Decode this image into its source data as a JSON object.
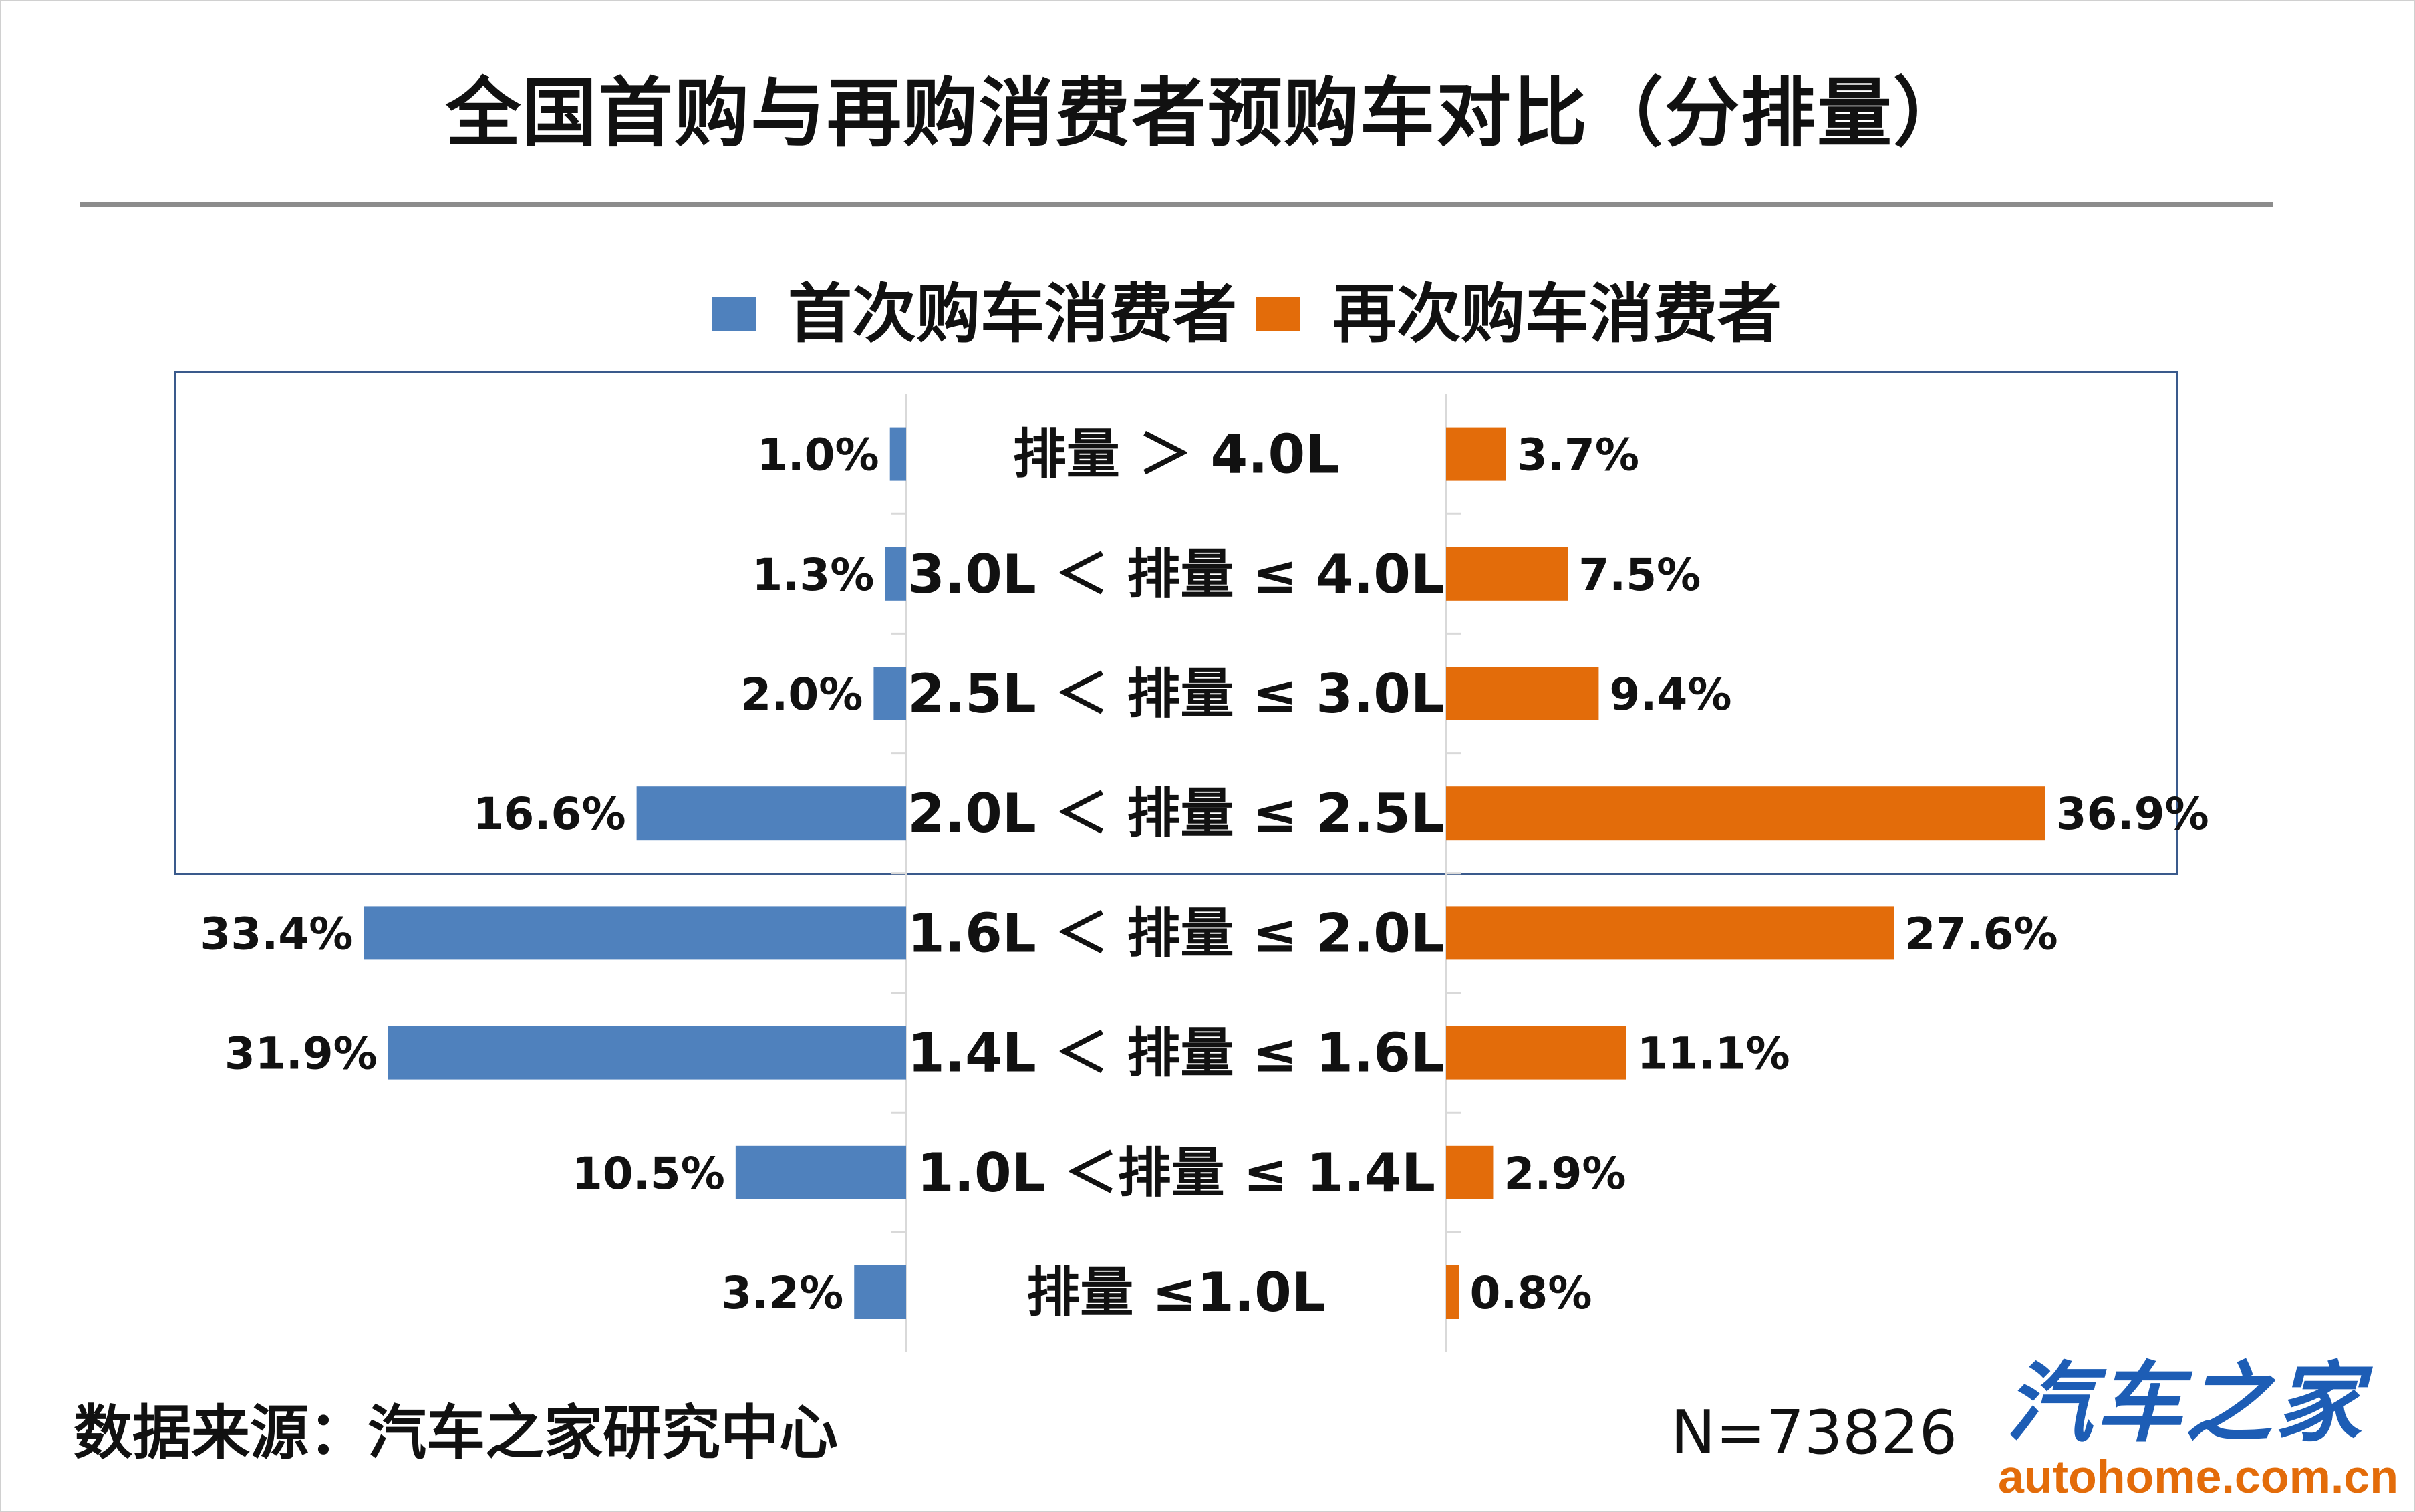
{
  "title": "全国首购与再购消费者预购车对比（分排量）",
  "legend": [
    {
      "name": "首次购车消费者",
      "color": "#4f81bd"
    },
    {
      "name": "再次购车消费者",
      "color": "#e36c0a"
    }
  ],
  "chart_data": {
    "type": "bar",
    "orientation": "horizontal-butterfly",
    "categories": [
      "排量 ＞ 4.0L",
      "3.0L ＜ 排量 ≤ 4.0L",
      "2.5L ＜ 排量 ≤ 3.0L",
      "2.0L ＜ 排量 ≤ 2.5L",
      "1.6L ＜ 排量 ≤ 2.0L",
      "1.4L ＜ 排量 ≤ 1.6L",
      "1.0L ＜排量 ≤ 1.4L",
      "排量 ≤1.0L"
    ],
    "series": [
      {
        "name": "首次购车消费者",
        "color": "#4f81bd",
        "values": [
          1.0,
          1.3,
          2.0,
          16.6,
          33.4,
          31.9,
          10.5,
          3.2
        ],
        "labels": [
          "1.0%",
          "1.3%",
          "2.0%",
          "16.6%",
          "33.4%",
          "31.9%",
          "10.5%",
          "3.2%"
        ]
      },
      {
        "name": "再次购车消费者",
        "color": "#e36c0a",
        "values": [
          3.7,
          7.5,
          9.4,
          36.9,
          27.6,
          11.1,
          2.9,
          0.8
        ],
        "labels": [
          "3.7%",
          "7.5%",
          "9.4%",
          "36.9%",
          "27.6%",
          "11.1%",
          "2.9%",
          "0.8%"
        ]
      }
    ],
    "unit": "%",
    "grid": false,
    "legend_position": "top"
  },
  "footer": {
    "source": "数据来源：汽车之家研究中心",
    "sample": "N=73826"
  },
  "brand": {
    "name": "汽车之家",
    "url": "autohome.com.cn"
  }
}
